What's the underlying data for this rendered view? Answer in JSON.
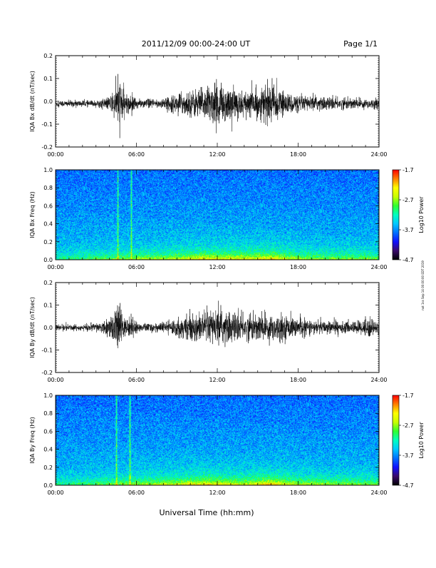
{
  "header": {
    "title": "2011/12/09  00:00-24:00 UT",
    "page": "Page 1/1"
  },
  "footer": {
    "xlabel": "Universal Time (hh:mm)"
  },
  "side_stamp": "not 1ss Sep 14 00:00:00 EDT 2019",
  "colors": {
    "waveform": "#000000",
    "colormap": [
      "#000000",
      "#3a0a6a",
      "#1010ff",
      "#0070ff",
      "#00c8ff",
      "#00ffc0",
      "#30ff30",
      "#c8ff00",
      "#ffff00",
      "#ff8000",
      "#ff0000"
    ]
  },
  "chart_data": [
    {
      "type": "line",
      "ylabel": "IQA Bx dB/dt (nT/sec)",
      "xlim": [
        0,
        24
      ],
      "ylim": [
        -0.2,
        0.2
      ],
      "x_ticks": [
        "00:00",
        "06:00",
        "12:00",
        "18:00",
        "24:00"
      ],
      "y_ticks": [
        "-0.2",
        "-0.1",
        "0.0",
        "0.1",
        "0.2"
      ],
      "y_tick_values": [
        -0.2,
        -0.1,
        0.0,
        0.1,
        0.2
      ],
      "baseline": -0.01,
      "amplitude_profile": [
        [
          0,
          0.012
        ],
        [
          3.0,
          0.012
        ],
        [
          4.0,
          0.025
        ],
        [
          4.5,
          0.07
        ],
        [
          4.8,
          0.1
        ],
        [
          5.2,
          0.03
        ],
        [
          5.7,
          0.035
        ],
        [
          6.2,
          0.015
        ],
        [
          8.0,
          0.02
        ],
        [
          9.0,
          0.035
        ],
        [
          10.0,
          0.05
        ],
        [
          11.0,
          0.06
        ],
        [
          12.0,
          0.08
        ],
        [
          13.0,
          0.06
        ],
        [
          14.0,
          0.05
        ],
        [
          15.0,
          0.06
        ],
        [
          16.0,
          0.07
        ],
        [
          17.0,
          0.045
        ],
        [
          18.0,
          0.03
        ],
        [
          20.0,
          0.025
        ],
        [
          22.0,
          0.02
        ],
        [
          24.0,
          0.018
        ]
      ]
    },
    {
      "type": "heatmap",
      "ylabel": "IQA Bx Freq (Hz)",
      "colorbar_label": "Log10 Power",
      "colorbar_ticks": [
        "-1.7",
        "-2.7",
        "-3.7",
        "-4.7"
      ],
      "colorbar_values": [
        -1.7,
        -2.7,
        -3.7,
        -4.7
      ],
      "xlim": [
        0,
        24
      ],
      "ylim": [
        0,
        1.0
      ],
      "x_ticks": [
        "00:00",
        "06:00",
        "12:00",
        "18:00",
        "24:00"
      ],
      "y_ticks": [
        "0.0",
        "0.2",
        "0.4",
        "0.6",
        "0.8",
        "1.0"
      ],
      "y_tick_values": [
        0.0,
        0.2,
        0.4,
        0.6,
        0.8,
        1.0
      ],
      "vertical_streaks_hours": [
        4.6,
        5.6
      ],
      "low_freq_enhancement": [
        [
          0,
          0.3
        ],
        [
          4,
          0.5
        ],
        [
          9,
          0.7
        ],
        [
          11,
          0.85
        ],
        [
          14,
          0.8
        ],
        [
          16,
          0.9
        ],
        [
          18,
          0.6
        ],
        [
          24,
          0.5
        ]
      ]
    },
    {
      "type": "line",
      "ylabel": "IQA By dB/dt (nT/sec)",
      "xlim": [
        0,
        24
      ],
      "ylim": [
        -0.2,
        0.2
      ],
      "x_ticks": [
        "00:00",
        "06:00",
        "12:00",
        "18:00",
        "24:00"
      ],
      "y_ticks": [
        "-0.2",
        "-0.1",
        "0.0",
        "0.1",
        "0.2"
      ],
      "y_tick_values": [
        -0.2,
        -0.1,
        0.0,
        0.1,
        0.2
      ],
      "baseline": 0.0,
      "amplitude_profile": [
        [
          0,
          0.01
        ],
        [
          2.0,
          0.012
        ],
        [
          3.5,
          0.02
        ],
        [
          4.3,
          0.06
        ],
        [
          4.7,
          0.09
        ],
        [
          5.2,
          0.03
        ],
        [
          5.6,
          0.04
        ],
        [
          6.2,
          0.015
        ],
        [
          8.0,
          0.02
        ],
        [
          9.0,
          0.035
        ],
        [
          10.0,
          0.05
        ],
        [
          11.0,
          0.06
        ],
        [
          12.0,
          0.07
        ],
        [
          13.0,
          0.06
        ],
        [
          14.0,
          0.05
        ],
        [
          15.0,
          0.05
        ],
        [
          16.0,
          0.055
        ],
        [
          17.0,
          0.045
        ],
        [
          18.0,
          0.03
        ],
        [
          20.0,
          0.025
        ],
        [
          22.0,
          0.02
        ],
        [
          23.3,
          0.04
        ],
        [
          24.0,
          0.02
        ]
      ]
    },
    {
      "type": "heatmap",
      "ylabel": "IQA By Freq (Hz)",
      "colorbar_label": "Log10 Power",
      "colorbar_ticks": [
        "-1.7",
        "-2.7",
        "-3.7",
        "-4.7"
      ],
      "colorbar_values": [
        -1.7,
        -2.7,
        -3.7,
        -4.7
      ],
      "xlim": [
        0,
        24
      ],
      "ylim": [
        0,
        1.0
      ],
      "x_ticks": [
        "00:00",
        "06:00",
        "12:00",
        "18:00",
        "24:00"
      ],
      "y_ticks": [
        "0.0",
        "0.2",
        "0.4",
        "0.6",
        "0.8",
        "1.0"
      ],
      "y_tick_values": [
        0.0,
        0.2,
        0.4,
        0.6,
        0.8,
        1.0
      ],
      "vertical_streaks_hours": [
        4.5,
        5.5
      ],
      "low_freq_enhancement": [
        [
          0,
          0.3
        ],
        [
          4,
          0.5
        ],
        [
          9,
          0.75
        ],
        [
          11,
          0.9
        ],
        [
          14,
          0.75
        ],
        [
          16,
          0.95
        ],
        [
          18,
          0.65
        ],
        [
          24,
          0.5
        ]
      ]
    }
  ]
}
